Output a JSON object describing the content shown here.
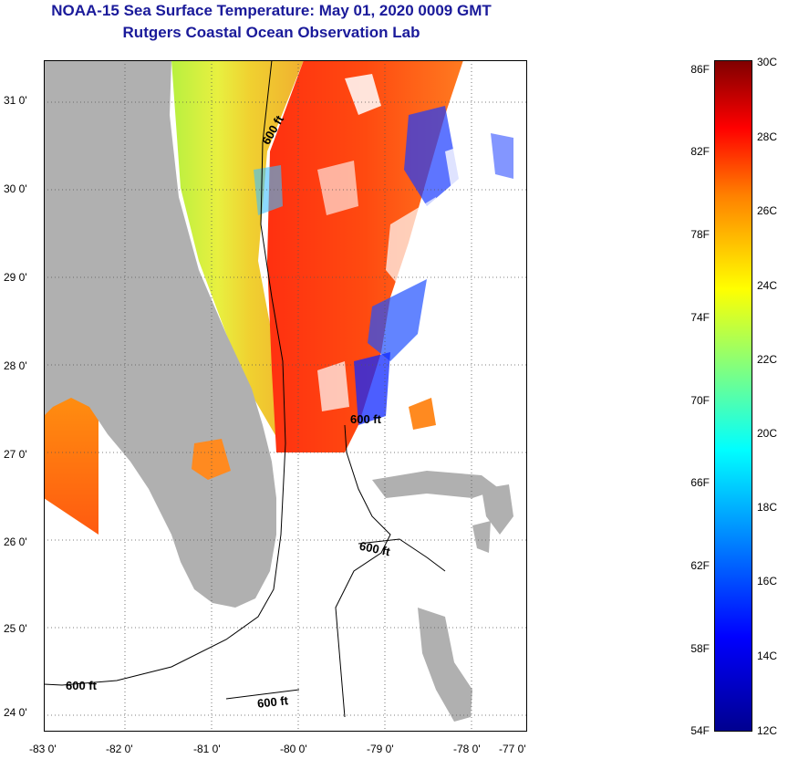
{
  "header": {
    "title": "NOAA-15 Sea Surface Temperature:  May 01, 2020 0009 GMT",
    "subtitle": "Rutgers Coastal Ocean Observation Lab"
  },
  "map": {
    "lon_ticks": [
      "-83 0'",
      "-82 0'",
      "-81 0'",
      "-80 0'",
      "-79 0'",
      "-78 0'",
      "-77 0'"
    ],
    "lat_ticks": [
      "31 0'",
      "30 0'",
      "29 0'",
      "28 0'",
      "27 0'",
      "26 0'",
      "25 0'",
      "24 0'"
    ],
    "contour_labels": [
      "600 ft",
      "600 ft",
      "600 ft",
      "600 ft",
      "600 ft"
    ]
  },
  "colorbar": {
    "fahrenheit": [
      "86F",
      "82F",
      "78F",
      "74F",
      "70F",
      "66F",
      "62F",
      "58F",
      "54F"
    ],
    "celsius": [
      "30C",
      "28C",
      "26C",
      "24C",
      "22C",
      "20C",
      "18C",
      "16C",
      "14C",
      "12C"
    ]
  },
  "colors": {
    "title": "#1a1a9a",
    "land": "#b0b0b0",
    "ocean_no_data": "#ffffff"
  }
}
